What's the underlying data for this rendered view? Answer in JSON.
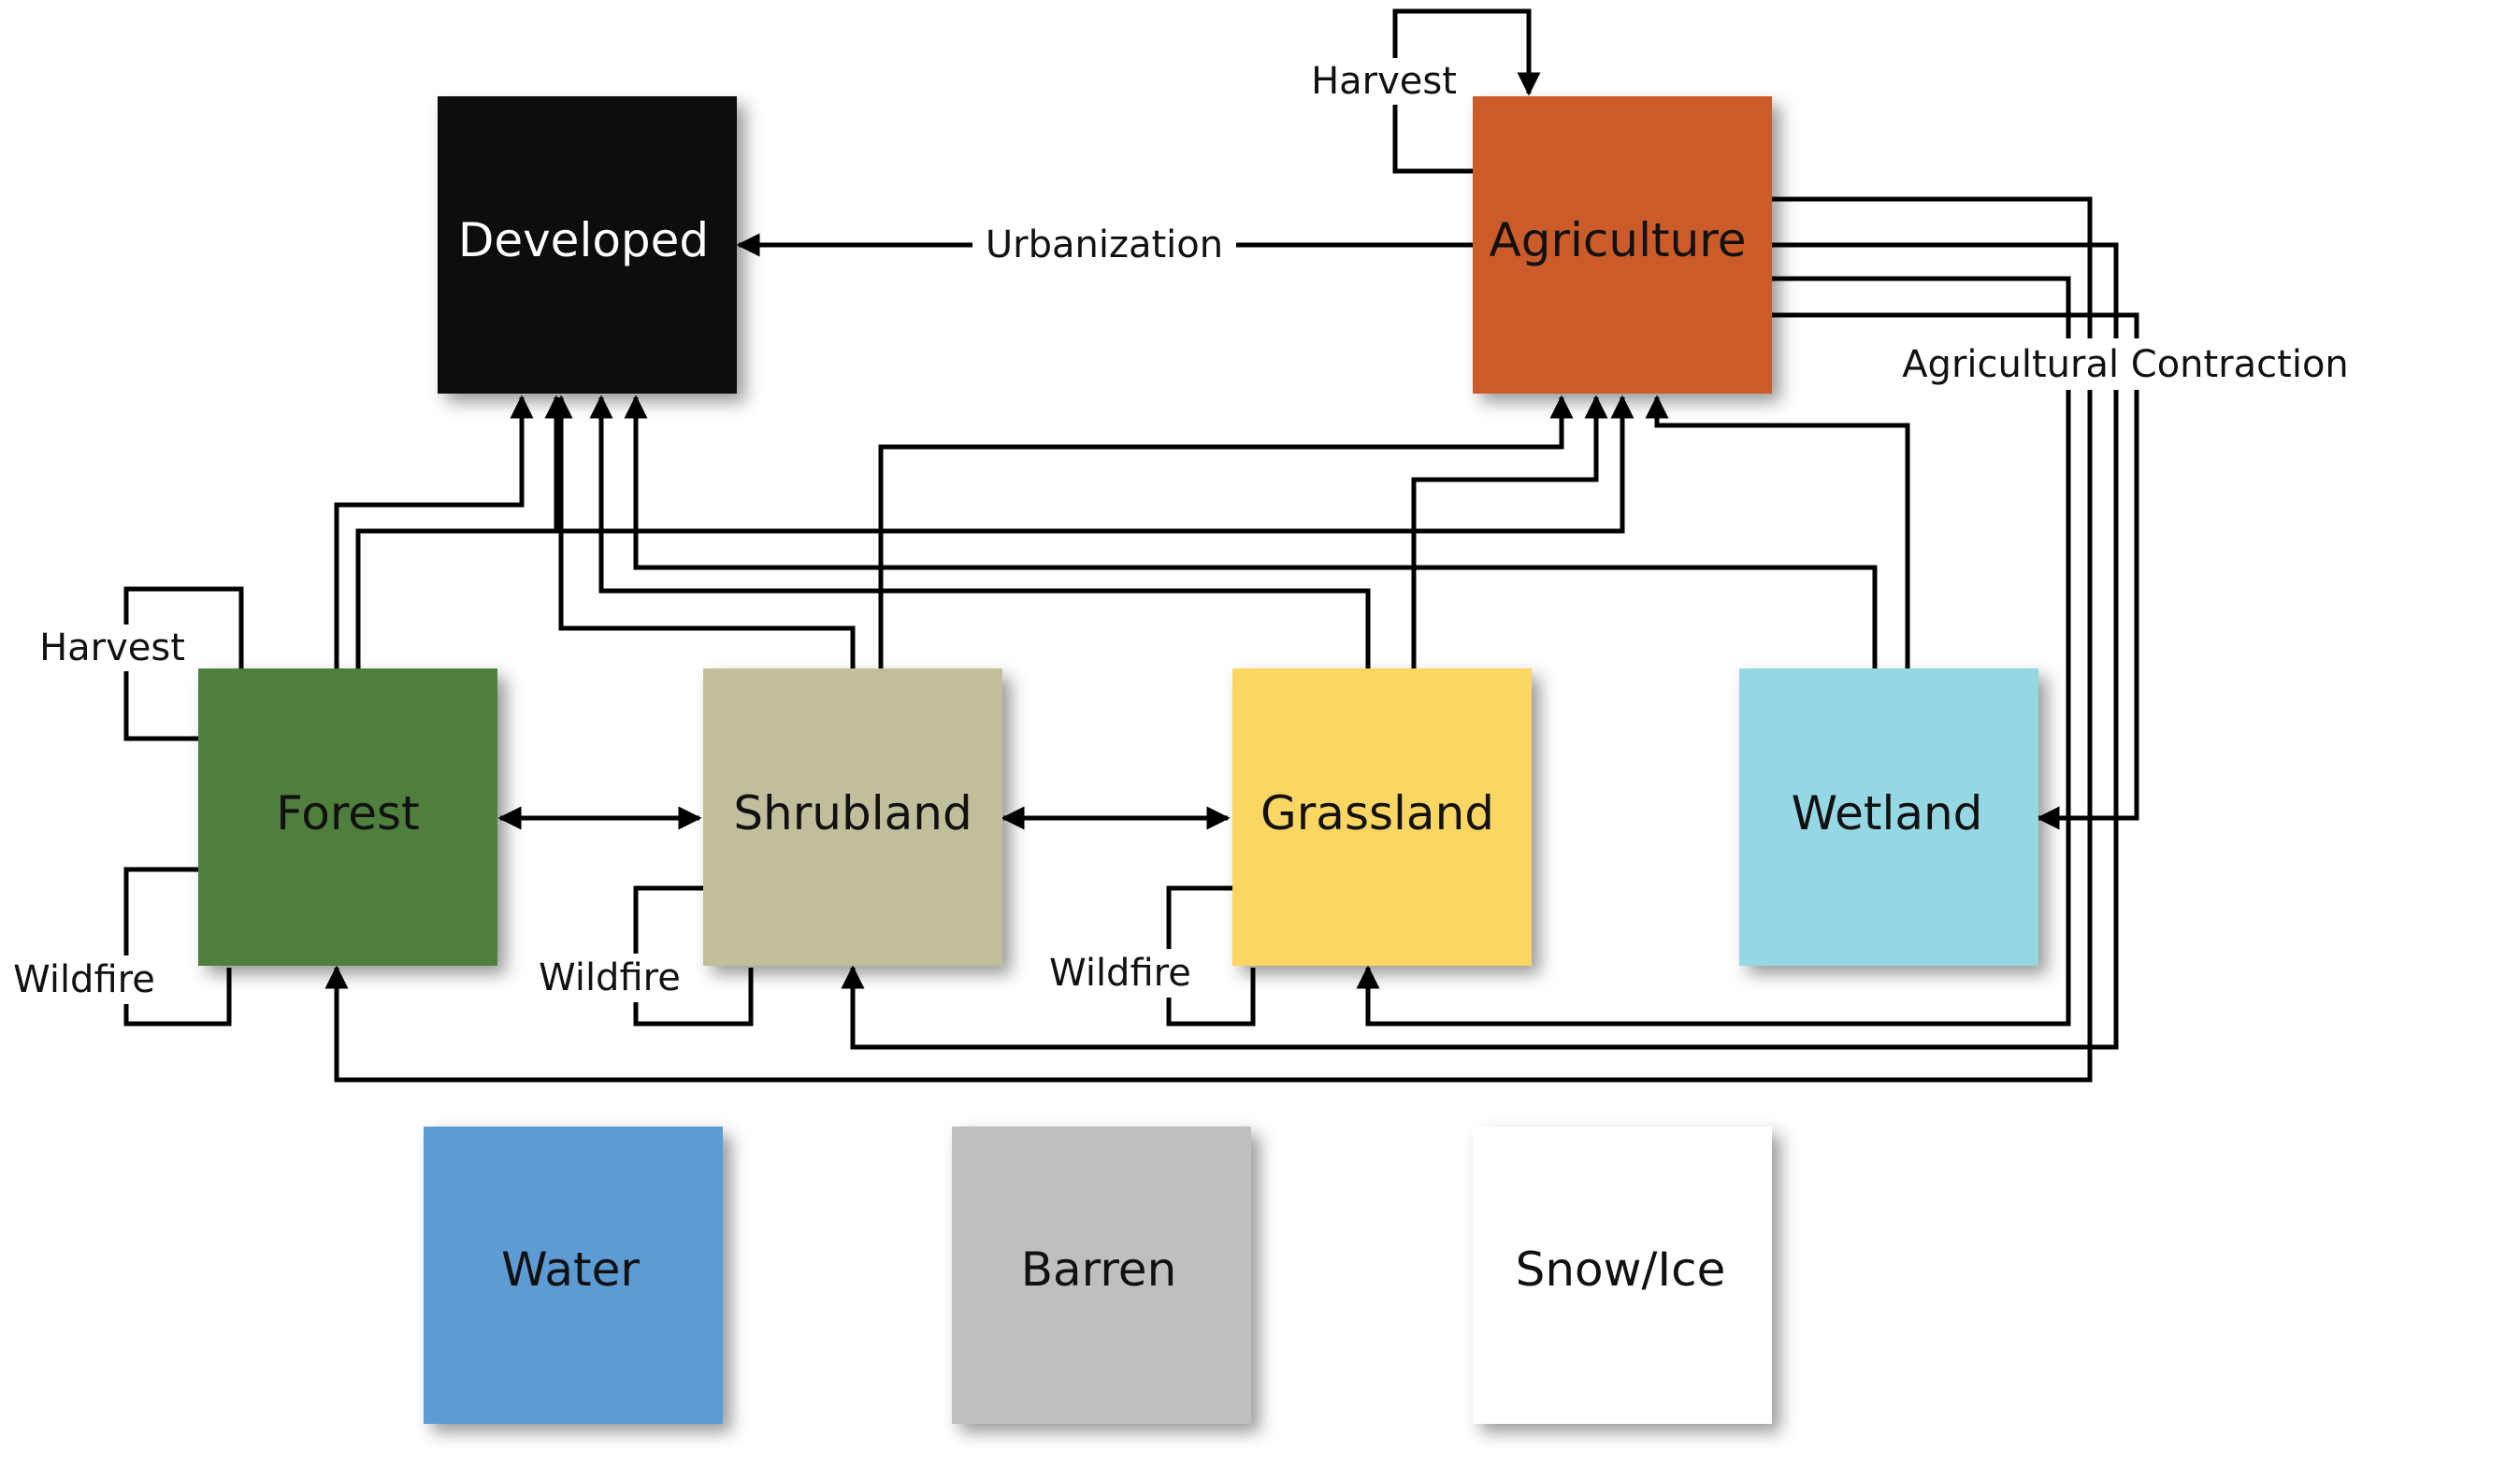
{
  "nodes": {
    "developed": {
      "label": "Developed",
      "fill": "#0a0b0a",
      "text_color": "#ffffff"
    },
    "agriculture": {
      "label": "Agriculture",
      "fill": "#cb5c29",
      "text_color": "#111111"
    },
    "forest": {
      "label": "Forest",
      "fill": "#4f7f3c",
      "text_color": "#111111"
    },
    "shrubland": {
      "label": "Shrubland",
      "fill": "#c1bf9b",
      "text_color": "#111111"
    },
    "grassland": {
      "label": "Grassland",
      "fill": "#fcd664",
      "text_color": "#111111"
    },
    "wetland": {
      "label": "Wetland",
      "fill": "#96d7e4",
      "text_color": "#111111"
    },
    "water": {
      "label": "Water",
      "fill": "#5b9bd4",
      "text_color": "#111111"
    },
    "barren": {
      "label": "Barren",
      "fill": "#c0bfc0",
      "text_color": "#111111"
    },
    "snow_ice": {
      "label": "Snow/Ice",
      "fill": "#ffffff",
      "text_color": "#111111"
    }
  },
  "edge_labels": {
    "urbanization": "Urbanization",
    "agricultural_contraction": "Agricultural Contraction",
    "harvest_agriculture": "Harvest",
    "harvest_forest": "Harvest",
    "wildfire_forest": "Wildfire",
    "wildfire_shrubland": "Wildfire",
    "wildfire_grassland": "Wildfire"
  }
}
